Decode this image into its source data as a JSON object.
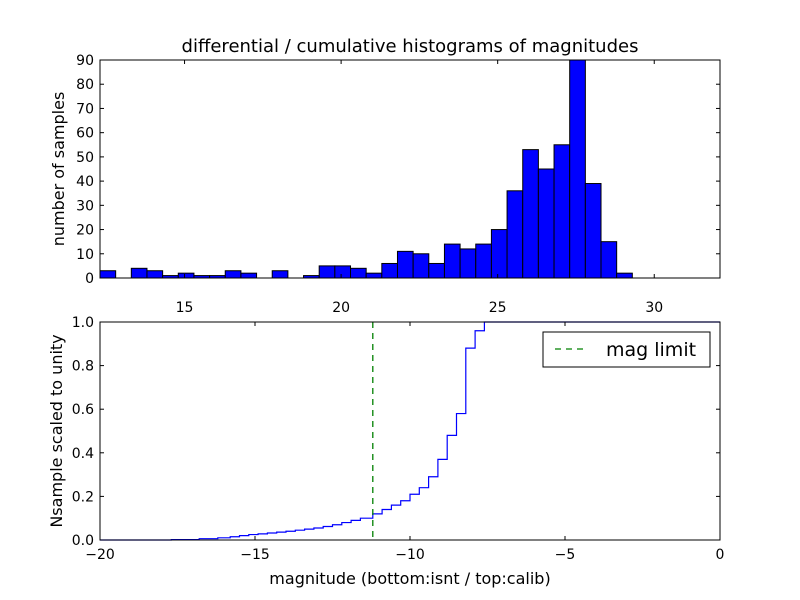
{
  "chart_data": [
    {
      "type": "bar",
      "title": "differential / cumulative histograms of magnitudes",
      "ylabel": "number of samples",
      "xlabel": "",
      "xlim": [
        12.3,
        32.1
      ],
      "ylim": [
        0,
        90
      ],
      "xticks": [
        15,
        20,
        25,
        30
      ],
      "yticks": [
        0,
        10,
        20,
        30,
        40,
        50,
        60,
        70,
        80,
        90
      ],
      "bar_color": "#0000ff",
      "bin_width": 0.5,
      "bin_starts": [
        12.3,
        12.8,
        13.3,
        13.8,
        14.3,
        14.8,
        15.3,
        15.8,
        16.3,
        16.8,
        17.3,
        17.8,
        18.3,
        18.8,
        19.3,
        19.8,
        20.3,
        20.8,
        21.3,
        21.8,
        22.3,
        22.8,
        23.3,
        23.8,
        24.3,
        24.8,
        25.3,
        25.8,
        26.3,
        26.8,
        27.3,
        27.8,
        28.3,
        28.8,
        29.3,
        29.8,
        30.3,
        30.8
      ],
      "values": [
        3,
        0,
        4,
        3,
        1,
        2,
        1,
        1,
        3,
        2,
        0,
        3,
        0,
        1,
        5,
        5,
        4,
        2,
        6,
        11,
        10,
        6,
        14,
        12,
        14,
        20,
        36,
        53,
        45,
        55,
        90,
        39,
        15,
        2,
        0,
        0,
        0,
        0
      ],
      "grid": false
    },
    {
      "type": "line",
      "ylabel": "Nsample scaled to unity",
      "xlabel": "magnitude (bottom:isnt / top:calib)",
      "xlim": [
        -20,
        0
      ],
      "ylim": [
        0,
        1.0
      ],
      "xticks": [
        -20,
        -15,
        -10,
        -5,
        0
      ],
      "xtick_labels": [
        "−20",
        "−15",
        "−10",
        "−5",
        "0"
      ],
      "yticks": [
        0.0,
        0.2,
        0.4,
        0.6,
        0.8,
        1.0
      ],
      "ytick_labels": [
        "0.0",
        "0.2",
        "0.4",
        "0.6",
        "0.8",
        "1.0"
      ],
      "line_color": "#0000ff",
      "legend_position": "top-right",
      "series": [
        {
          "name": "",
          "step": true,
          "x": [
            -20.0,
            -17.7,
            -16.8,
            -16.2,
            -15.8,
            -15.5,
            -15.2,
            -14.9,
            -14.6,
            -14.3,
            -14.0,
            -13.7,
            -13.4,
            -13.1,
            -12.8,
            -12.5,
            -12.2,
            -11.9,
            -11.6,
            -11.2,
            -10.9,
            -10.6,
            -10.3,
            -10.0,
            -9.7,
            -9.4,
            -9.1,
            -8.8,
            -8.5,
            -8.2,
            -7.9,
            -7.6,
            0.0
          ],
          "y": [
            0.0,
            0.002,
            0.006,
            0.01,
            0.015,
            0.02,
            0.025,
            0.028,
            0.032,
            0.036,
            0.04,
            0.045,
            0.05,
            0.055,
            0.062,
            0.07,
            0.08,
            0.09,
            0.1,
            0.12,
            0.14,
            0.16,
            0.18,
            0.21,
            0.24,
            0.29,
            0.37,
            0.48,
            0.58,
            0.88,
            0.96,
            1.0,
            1.0
          ]
        },
        {
          "name": "mag limit",
          "type": "vline",
          "x": -11.2,
          "color": "#008000",
          "dash": true
        }
      ],
      "grid": false
    }
  ]
}
